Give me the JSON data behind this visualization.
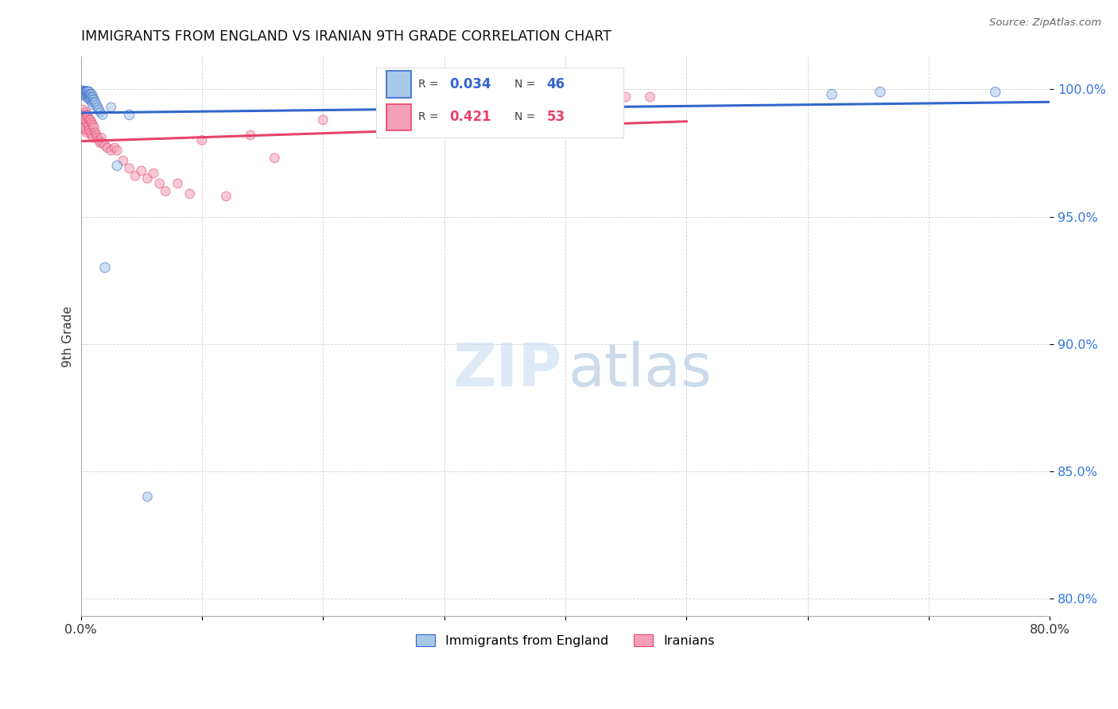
{
  "title": "IMMIGRANTS FROM ENGLAND VS IRANIAN 9TH GRADE CORRELATION CHART",
  "source": "Source: ZipAtlas.com",
  "ylabel": "9th Grade",
  "legend_label1": "Immigrants from England",
  "legend_label2": "Iranians",
  "r1": 0.034,
  "n1": 46,
  "r2": 0.421,
  "n2": 53,
  "color1": "#a8c8e8",
  "color2": "#f4a0b8",
  "trendline1_color": "#3366cc",
  "trendline2_color": "#e8436a",
  "xmin": 0.0,
  "xmax": 0.8,
  "ymin": 0.793,
  "ymax": 1.013,
  "yticks": [
    0.8,
    0.85,
    0.9,
    0.95,
    1.0
  ],
  "ytick_labels": [
    "80.0%",
    "85.0%",
    "90.0%",
    "95.0%",
    "100.0%"
  ],
  "xticks": [
    0.0,
    0.1,
    0.2,
    0.3,
    0.4,
    0.5,
    0.6,
    0.7,
    0.8
  ],
  "xtick_labels": [
    "0.0%",
    "",
    "",
    "",
    "",
    "",
    "",
    "",
    "80.0%"
  ],
  "background_color": "#ffffff",
  "england_x": [
    0.001,
    0.002,
    0.002,
    0.003,
    0.003,
    0.003,
    0.004,
    0.004,
    0.004,
    0.005,
    0.005,
    0.005,
    0.005,
    0.006,
    0.006,
    0.006,
    0.007,
    0.007,
    0.007,
    0.007,
    0.008,
    0.008,
    0.008,
    0.009,
    0.009,
    0.009,
    0.01,
    0.01,
    0.01,
    0.011,
    0.011,
    0.012,
    0.013,
    0.014,
    0.015,
    0.016,
    0.018,
    0.02,
    0.025,
    0.03,
    0.04,
    0.055,
    0.38,
    0.62,
    0.66,
    0.755
  ],
  "england_y": [
    0.999,
    0.999,
    0.998,
    0.999,
    0.999,
    0.998,
    0.999,
    0.999,
    0.998,
    0.999,
    0.999,
    0.998,
    0.997,
    0.999,
    0.998,
    0.997,
    0.999,
    0.998,
    0.997,
    0.996,
    0.998,
    0.997,
    0.996,
    0.998,
    0.997,
    0.995,
    0.997,
    0.996,
    0.994,
    0.996,
    0.995,
    0.995,
    0.994,
    0.993,
    0.992,
    0.991,
    0.99,
    0.93,
    0.993,
    0.97,
    0.99,
    0.84,
    0.993,
    0.998,
    0.999,
    0.999
  ],
  "england_sizes": [
    120,
    100,
    90,
    80,
    90,
    80,
    90,
    80,
    70,
    90,
    80,
    70,
    80,
    90,
    80,
    70,
    80,
    70,
    80,
    70,
    80,
    70,
    70,
    80,
    70,
    70,
    70,
    70,
    80,
    70,
    70,
    70,
    70,
    70,
    70,
    70,
    70,
    80,
    70,
    80,
    80,
    70,
    80,
    80,
    80,
    80
  ],
  "iranian_x": [
    0.001,
    0.001,
    0.002,
    0.002,
    0.003,
    0.003,
    0.004,
    0.004,
    0.004,
    0.005,
    0.005,
    0.005,
    0.006,
    0.006,
    0.007,
    0.007,
    0.008,
    0.008,
    0.009,
    0.009,
    0.01,
    0.01,
    0.011,
    0.012,
    0.013,
    0.014,
    0.015,
    0.016,
    0.017,
    0.018,
    0.02,
    0.022,
    0.025,
    0.028,
    0.03,
    0.035,
    0.04,
    0.045,
    0.05,
    0.055,
    0.06,
    0.065,
    0.07,
    0.08,
    0.09,
    0.1,
    0.12,
    0.14,
    0.16,
    0.2,
    0.25,
    0.45,
    0.47
  ],
  "iranian_y": [
    0.99,
    0.985,
    0.992,
    0.988,
    0.99,
    0.985,
    0.991,
    0.988,
    0.984,
    0.99,
    0.987,
    0.983,
    0.989,
    0.986,
    0.988,
    0.984,
    0.988,
    0.983,
    0.987,
    0.982,
    0.986,
    0.981,
    0.985,
    0.983,
    0.982,
    0.981,
    0.98,
    0.979,
    0.981,
    0.979,
    0.978,
    0.977,
    0.976,
    0.977,
    0.976,
    0.972,
    0.969,
    0.966,
    0.968,
    0.965,
    0.967,
    0.963,
    0.96,
    0.963,
    0.959,
    0.98,
    0.958,
    0.982,
    0.973,
    0.988,
    0.996,
    0.997,
    0.997
  ],
  "iranian_sizes": [
    70,
    70,
    70,
    70,
    70,
    70,
    70,
    70,
    70,
    70,
    70,
    70,
    70,
    70,
    70,
    70,
    70,
    70,
    70,
    70,
    70,
    70,
    70,
    70,
    70,
    70,
    70,
    70,
    70,
    70,
    70,
    70,
    70,
    70,
    70,
    70,
    70,
    70,
    70,
    70,
    70,
    70,
    70,
    70,
    70,
    70,
    70,
    70,
    70,
    70,
    70,
    70,
    70
  ]
}
